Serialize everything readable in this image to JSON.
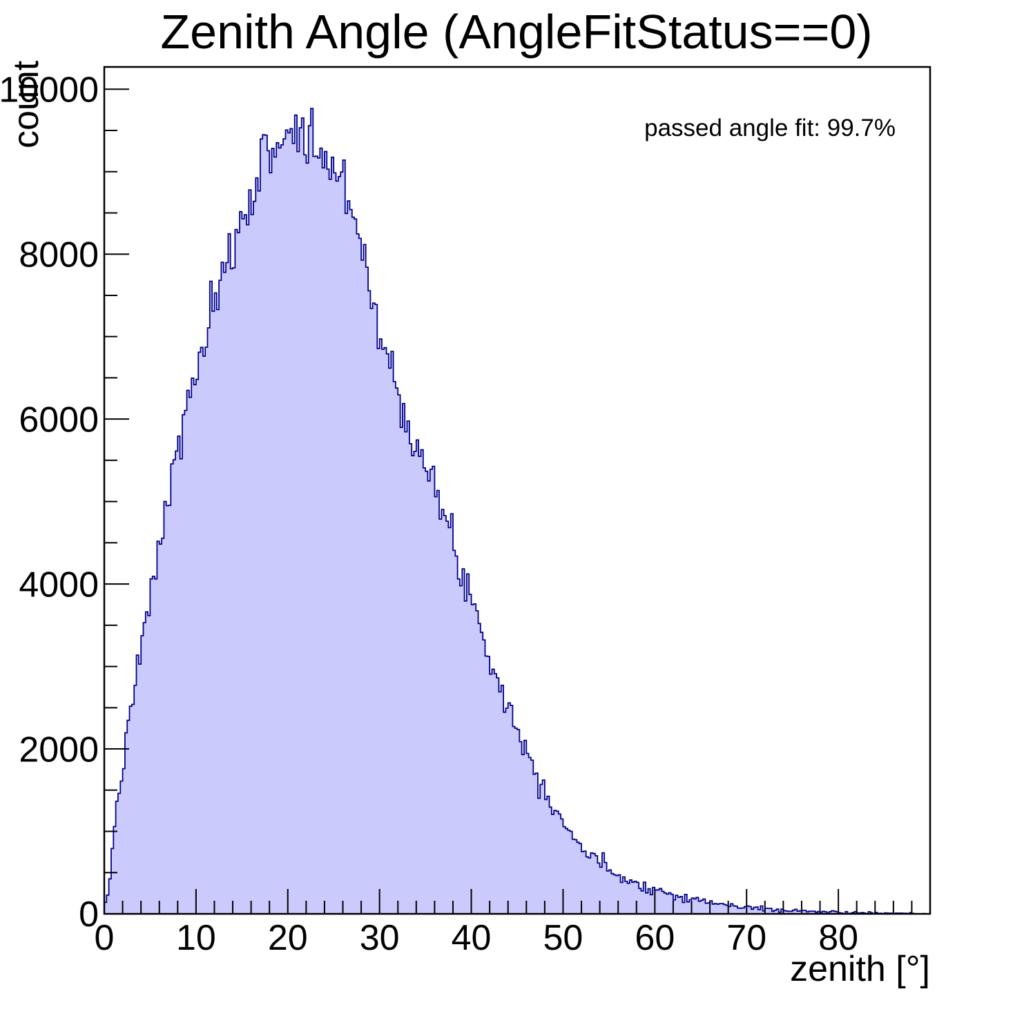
{
  "chart": {
    "title": "Zenith Angle (AngleFitStatus==0)",
    "annotation": "passed angle fit: 99.7%",
    "background_color": "#ffffff",
    "frame_color": "#000000",
    "x_axis": {
      "title": "zenith [°]",
      "min": 0,
      "max": 90,
      "major_step": 10,
      "minor_step": 2,
      "tick_labels": [
        "0",
        "10",
        "20",
        "30",
        "40",
        "50",
        "60",
        "70",
        "80"
      ]
    },
    "y_axis": {
      "title": "count",
      "min": 0,
      "max": 10270,
      "major_step": 2000,
      "minor_step": 500,
      "tick_labels": [
        "0",
        "2000",
        "4000",
        "6000",
        "8000",
        "10000"
      ]
    }
  },
  "chart_data": {
    "type": "bar",
    "subtype": "histogram",
    "title": "Zenith Angle (AngleFitStatus==0)",
    "xlabel": "zenith [°]",
    "ylabel": "count",
    "xlim": [
      0,
      90
    ],
    "ylim": [
      0,
      10270
    ],
    "bin_width_deg": 0.25,
    "fill_color": "#cacafc",
    "line_color": "#00008b",
    "noise_sigma_scale": 1.9,
    "noise_seed": 7,
    "envelope_points": [
      [
        0,
        20
      ],
      [
        0.5,
        300
      ],
      [
        1,
        950
      ],
      [
        1.5,
        1420
      ],
      [
        2,
        1800
      ],
      [
        3,
        2500
      ],
      [
        4,
        3200
      ],
      [
        5,
        3830
      ],
      [
        6,
        4450
      ],
      [
        7,
        5050
      ],
      [
        8,
        5610
      ],
      [
        9,
        6150
      ],
      [
        10,
        6550
      ],
      [
        11,
        6940
      ],
      [
        12,
        7330
      ],
      [
        13,
        7680
      ],
      [
        14,
        8050
      ],
      [
        15,
        8400
      ],
      [
        16,
        8750
      ],
      [
        17,
        9030
      ],
      [
        18,
        9250
      ],
      [
        19,
        9400
      ],
      [
        20,
        9480
      ],
      [
        21,
        9450
      ],
      [
        22,
        9380
      ],
      [
        23,
        9280
      ],
      [
        24,
        9150
      ],
      [
        25,
        9020
      ],
      [
        26,
        8870
      ],
      [
        27,
        8600
      ],
      [
        28,
        8200
      ],
      [
        28.5,
        7900
      ],
      [
        29,
        7550
      ],
      [
        30,
        7050
      ],
      [
        31,
        6650
      ],
      [
        32,
        6350
      ],
      [
        33,
        6050
      ],
      [
        34,
        5750
      ],
      [
        35,
        5420
      ],
      [
        36,
        5100
      ],
      [
        37,
        4820
      ],
      [
        38,
        4500
      ],
      [
        39,
        4170
      ],
      [
        40,
        3840
      ],
      [
        41,
        3500
      ],
      [
        42,
        3120
      ],
      [
        43,
        2840
      ],
      [
        44,
        2510
      ],
      [
        45,
        2250
      ],
      [
        46,
        1980
      ],
      [
        47,
        1720
      ],
      [
        48,
        1520
      ],
      [
        49,
        1320
      ],
      [
        50,
        1125
      ],
      [
        51,
        960
      ],
      [
        52,
        810
      ],
      [
        53,
        690
      ],
      [
        54,
        615
      ],
      [
        55,
        545
      ],
      [
        56,
        480
      ],
      [
        57,
        420
      ],
      [
        58,
        368
      ],
      [
        59,
        330
      ],
      [
        60,
        300
      ],
      [
        61,
        262
      ],
      [
        62,
        230
      ],
      [
        63,
        212
      ],
      [
        64,
        190
      ],
      [
        65,
        160
      ],
      [
        66,
        135
      ],
      [
        67,
        118
      ],
      [
        68,
        104
      ],
      [
        69,
        90
      ],
      [
        70,
        78
      ],
      [
        71,
        68
      ],
      [
        72,
        60
      ],
      [
        73,
        52
      ],
      [
        74,
        46
      ],
      [
        75,
        40
      ],
      [
        76,
        34
      ],
      [
        77,
        29
      ],
      [
        78,
        25
      ],
      [
        79,
        22
      ],
      [
        80,
        19
      ],
      [
        81,
        16
      ],
      [
        82,
        13
      ],
      [
        83,
        11
      ],
      [
        84,
        9
      ],
      [
        85,
        7
      ],
      [
        86,
        5
      ],
      [
        87,
        4
      ],
      [
        88,
        2.5
      ],
      [
        89,
        1.5
      ],
      [
        90,
        0
      ]
    ],
    "spikes": [
      [
        22.625,
        9766
      ]
    ]
  }
}
